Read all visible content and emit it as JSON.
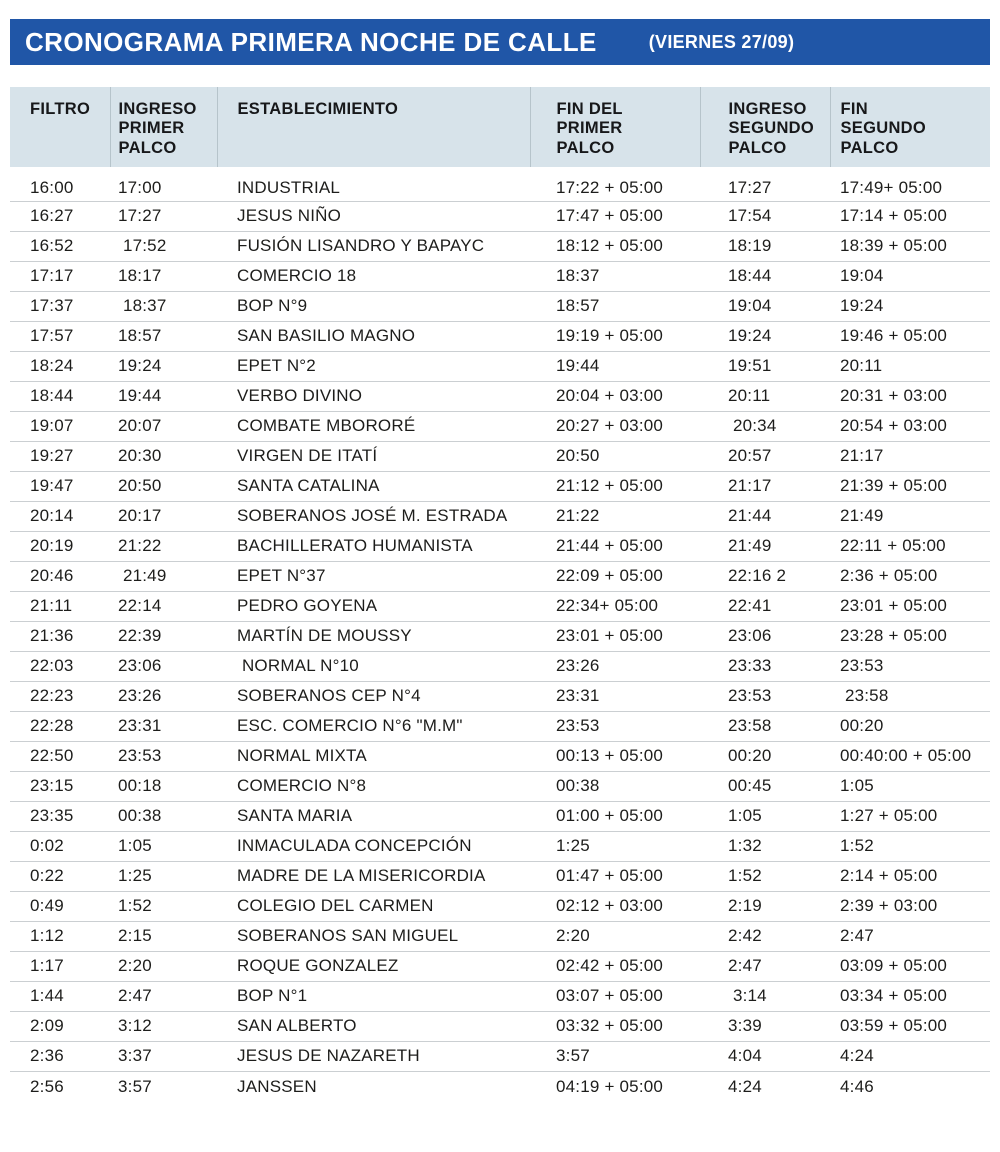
{
  "header": {
    "title": "CRONOGRAMA PRIMERA NOCHE DE CALLE",
    "date_note": "(VIERNES 27/09)"
  },
  "theme": {
    "banner_color": "#2056a7",
    "header_band_color": "#d7e3ea",
    "row_line_color": "#cbcfd2",
    "divider_color": "#b6c4cb",
    "text_color": "#1d1d1b"
  },
  "table": {
    "columns": [
      {
        "key": "filtro",
        "label": "FILTRO"
      },
      {
        "key": "ingreso-primer-palco",
        "label": "INGRESO\nPRIMER\nPALCO"
      },
      {
        "key": "establecimiento",
        "label": "ESTABLECIMIENTO"
      },
      {
        "key": "fin-del-primer-palco",
        "label": "FIN DEL\nPRIMER\nPALCO"
      },
      {
        "key": "ingreso-segundo-palco",
        "label": "INGRESO\nSEGUNDO\nPALCO"
      },
      {
        "key": "fin-segundo-palco",
        "label": "FIN\nSEGUNDO\nPALCO"
      }
    ],
    "rows": [
      [
        "16:00",
        "17:00",
        "INDUSTRIAL",
        "17:22 + 05:00",
        "17:27",
        "17:49+ 05:00"
      ],
      [
        "16:27",
        "17:27",
        "JESUS NIÑO",
        "17:47 + 05:00",
        "17:54",
        "17:14 + 05:00"
      ],
      [
        "16:52",
        " 17:52",
        "FUSIÓN LISANDRO Y BAPAYC",
        "18:12 + 05:00",
        "18:19",
        "18:39 + 05:00"
      ],
      [
        "17:17",
        "18:17",
        "COMERCIO 18",
        "18:37",
        "18:44",
        "19:04"
      ],
      [
        "17:37",
        " 18:37",
        "BOP N°9",
        "18:57",
        "19:04",
        "19:24"
      ],
      [
        "17:57",
        "18:57",
        "SAN BASILIO MAGNO",
        "19:19 + 05:00",
        "19:24",
        "19:46 + 05:00"
      ],
      [
        "18:24",
        "19:24",
        "EPET N°2",
        "19:44",
        "19:51",
        "20:11"
      ],
      [
        "18:44",
        "19:44",
        "VERBO DIVINO",
        "20:04 + 03:00",
        "20:11",
        "20:31 + 03:00"
      ],
      [
        "19:07",
        "20:07",
        "COMBATE MBORORÉ",
        "20:27 + 03:00",
        " 20:34",
        "20:54 + 03:00"
      ],
      [
        "19:27",
        "20:30",
        "VIRGEN DE ITATÍ",
        "20:50",
        "20:57",
        "21:17"
      ],
      [
        "19:47",
        "20:50",
        "SANTA CATALINA",
        "21:12 + 05:00",
        "21:17",
        "21:39 + 05:00"
      ],
      [
        "20:14",
        "20:17",
        "SOBERANOS JOSÉ M. ESTRADA",
        "21:22",
        "21:44",
        "21:49"
      ],
      [
        "20:19",
        "21:22",
        "BACHILLERATO HUMANISTA",
        "21:44 + 05:00",
        "21:49",
        "22:11 + 05:00"
      ],
      [
        "20:46",
        " 21:49",
        "EPET N°37",
        "22:09 + 05:00",
        "22:16 2",
        "2:36 + 05:00"
      ],
      [
        "21:11",
        "22:14",
        "PEDRO GOYENA",
        "22:34+ 05:00",
        "22:41",
        "23:01 + 05:00"
      ],
      [
        "21:36",
        "22:39",
        "MARTÍN DE MOUSSY",
        "23:01 + 05:00",
        "23:06",
        "23:28 + 05:00"
      ],
      [
        "22:03",
        "23:06",
        " NORMAL N°10",
        "23:26",
        "23:33",
        "23:53"
      ],
      [
        "22:23",
        "23:26",
        "SOBERANOS CEP N°4",
        "23:31",
        "23:53",
        " 23:58"
      ],
      [
        "22:28",
        "23:31",
        "ESC. COMERCIO N°6 \"M.M\"",
        "23:53",
        "23:58",
        "00:20"
      ],
      [
        "22:50",
        "23:53",
        "NORMAL MIXTA",
        "00:13 + 05:00",
        "00:20",
        "00:40:00 + 05:00"
      ],
      [
        "23:15",
        "00:18",
        "COMERCIO N°8",
        "00:38",
        "00:45",
        "1:05"
      ],
      [
        "23:35",
        "00:38",
        "SANTA MARIA",
        "01:00 + 05:00",
        "1:05",
        "1:27 + 05:00"
      ],
      [
        "0:02",
        "1:05",
        "INMACULADA CONCEPCIÓN",
        "1:25",
        "1:32",
        "1:52"
      ],
      [
        "0:22",
        "1:25",
        "MADRE DE LA MISERICORDIA",
        "01:47 + 05:00",
        "1:52",
        "2:14 + 05:00"
      ],
      [
        "0:49",
        "1:52",
        "COLEGIO DEL CARMEN",
        "02:12 + 03:00",
        "2:19",
        "2:39 + 03:00"
      ],
      [
        "1:12",
        "2:15",
        "SOBERANOS SAN MIGUEL",
        "2:20",
        "2:42",
        "2:47"
      ],
      [
        "1:17",
        "2:20",
        "ROQUE GONZALEZ",
        "02:42 + 05:00",
        "2:47",
        "03:09 + 05:00"
      ],
      [
        "1:44",
        "2:47",
        "BOP N°1",
        "03:07 + 05:00",
        " 3:14",
        "03:34 + 05:00"
      ],
      [
        "2:09",
        "3:12",
        "SAN ALBERTO",
        "03:32 + 05:00",
        "3:39",
        "03:59 + 05:00"
      ],
      [
        "2:36",
        "3:37",
        "JESUS DE NAZARETH",
        "3:57",
        "4:04",
        "4:24"
      ],
      [
        "2:56",
        "3:57",
        "JANSSEN",
        "04:19 + 05:00",
        "4:24",
        "4:46"
      ]
    ]
  }
}
